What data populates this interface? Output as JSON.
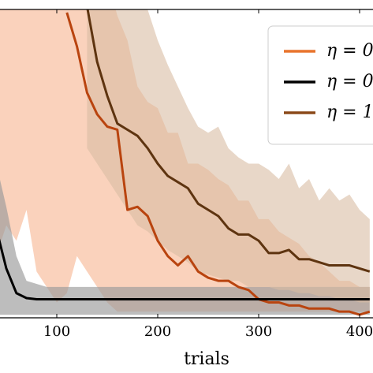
{
  "chart_data": {
    "type": "line",
    "x_label": "trials",
    "x": [
      40,
      50,
      60,
      70,
      80,
      90,
      100,
      110,
      120,
      130,
      140,
      150,
      160,
      170,
      180,
      190,
      200,
      210,
      220,
      230,
      240,
      250,
      260,
      270,
      280,
      290,
      300,
      310,
      320,
      330,
      340,
      350,
      360,
      370,
      380,
      390,
      400,
      410
    ],
    "xlim": [
      0,
      450
    ],
    "xticks": [
      100,
      200,
      300,
      400
    ],
    "ylim": [
      0,
      1
    ],
    "series": [
      {
        "name": "η = 0",
        "color": "#b9440f",
        "legend_color": "#e8742c",
        "band_color": "#f7b48f",
        "values": [
          null,
          null,
          null,
          null,
          null,
          null,
          null,
          0.99,
          0.88,
          0.73,
          0.66,
          0.62,
          0.61,
          0.35,
          0.36,
          0.33,
          0.25,
          0.2,
          0.17,
          0.2,
          0.15,
          0.13,
          0.12,
          0.12,
          0.1,
          0.09,
          0.06,
          0.05,
          0.05,
          0.04,
          0.04,
          0.03,
          0.03,
          0.03,
          0.02,
          0.02,
          0.01,
          0.02
        ],
        "upper": [
          1.1,
          1.1,
          1.1,
          1.1,
          1.1,
          1.1,
          1.1,
          1.1,
          1.1,
          1.1,
          1.1,
          1.1,
          0.98,
          0.9,
          0.75,
          0.7,
          0.68,
          0.6,
          0.6,
          0.5,
          0.5,
          0.48,
          0.45,
          0.43,
          0.38,
          0.38,
          0.32,
          0.32,
          0.28,
          0.26,
          0.24,
          0.2,
          0.18,
          0.15,
          0.12,
          0.12,
          0.1,
          0.1
        ],
        "lower": [
          0.2,
          0.3,
          0.25,
          0.35,
          0.15,
          0.1,
          0.05,
          0.08,
          0.2,
          0.15,
          0.1,
          0.05,
          0.02,
          0.02,
          0.02,
          0.02,
          0.02,
          0.02,
          0.02,
          0.02,
          0.02,
          0.02,
          0.02,
          0.02,
          0.02,
          0.02,
          0.02,
          0.02,
          0.02,
          0.02,
          0.02,
          0.02,
          0.02,
          0.02,
          0.02,
          0.02,
          0.02,
          0.02
        ]
      },
      {
        "name": "η = 0",
        "color": "#000000",
        "legend_color": "#000000",
        "band_color": "#9a9a9a",
        "values": [
          0.29,
          0.16,
          0.08,
          0.064,
          0.06,
          0.06,
          0.06,
          0.06,
          0.06,
          0.06,
          0.06,
          0.06,
          0.06,
          0.06,
          0.06,
          0.06,
          0.06,
          0.06,
          0.06,
          0.06,
          0.06,
          0.06,
          0.06,
          0.06,
          0.06,
          0.06,
          0.06,
          0.06,
          0.06,
          0.06,
          0.06,
          0.06,
          0.06,
          0.06,
          0.06,
          0.06,
          0.06,
          0.06
        ],
        "upper": [
          0.5,
          0.36,
          0.2,
          0.12,
          0.11,
          0.1,
          0.1,
          0.1,
          0.1,
          0.1,
          0.1,
          0.1,
          0.1,
          0.1,
          0.1,
          0.1,
          0.1,
          0.1,
          0.1,
          0.1,
          0.1,
          0.1,
          0.1,
          0.1,
          0.1,
          0.1,
          0.1,
          0.1,
          0.1,
          0.1,
          0.1,
          0.1,
          0.1,
          0.1,
          0.1,
          0.1,
          0.1,
          0.1
        ],
        "lower": [
          0.01,
          0.01,
          0.01,
          0.01,
          0.01,
          0.01,
          0.01,
          0.01,
          0.01,
          0.01,
          0.01,
          0.01,
          0.01,
          0.01,
          0.01,
          0.01,
          0.01,
          0.01,
          0.01,
          0.01,
          0.01,
          0.01,
          0.01,
          0.01,
          0.01,
          0.01,
          0.01,
          0.01,
          0.01,
          0.01,
          0.01,
          0.01,
          0.01,
          0.01,
          0.01,
          0.01,
          0.01,
          0.01
        ]
      },
      {
        "name": "η = 1",
        "color": "#5e3410",
        "legend_color": "#8b4a1a",
        "band_color": "#d9bca3",
        "values": [
          null,
          null,
          null,
          null,
          null,
          null,
          null,
          null,
          null,
          1.01,
          0.83,
          0.72,
          0.63,
          0.61,
          0.59,
          0.55,
          0.5,
          0.46,
          0.44,
          0.42,
          0.37,
          0.35,
          0.33,
          0.29,
          0.27,
          0.27,
          0.25,
          0.21,
          0.21,
          0.22,
          0.19,
          0.19,
          0.18,
          0.17,
          0.17,
          0.17,
          0.16,
          0.15
        ],
        "upper": [
          null,
          null,
          null,
          null,
          null,
          null,
          null,
          null,
          null,
          1.1,
          1.1,
          1.1,
          1.1,
          1.1,
          1.1,
          1.0,
          0.9,
          0.82,
          0.75,
          0.68,
          0.62,
          0.6,
          0.62,
          0.55,
          0.52,
          0.5,
          0.5,
          0.48,
          0.45,
          0.5,
          0.42,
          0.45,
          0.38,
          0.42,
          0.38,
          0.4,
          0.35,
          0.32
        ],
        "lower": [
          null,
          null,
          null,
          null,
          null,
          null,
          null,
          null,
          null,
          0.55,
          0.5,
          0.45,
          0.4,
          0.35,
          0.3,
          0.28,
          0.25,
          0.22,
          0.2,
          0.18,
          0.15,
          0.14,
          0.13,
          0.12,
          0.12,
          0.1,
          0.1,
          0.1,
          0.09,
          0.09,
          0.08,
          0.08,
          0.07,
          0.07,
          0.06,
          0.06,
          0.05,
          0.05
        ]
      }
    ]
  }
}
